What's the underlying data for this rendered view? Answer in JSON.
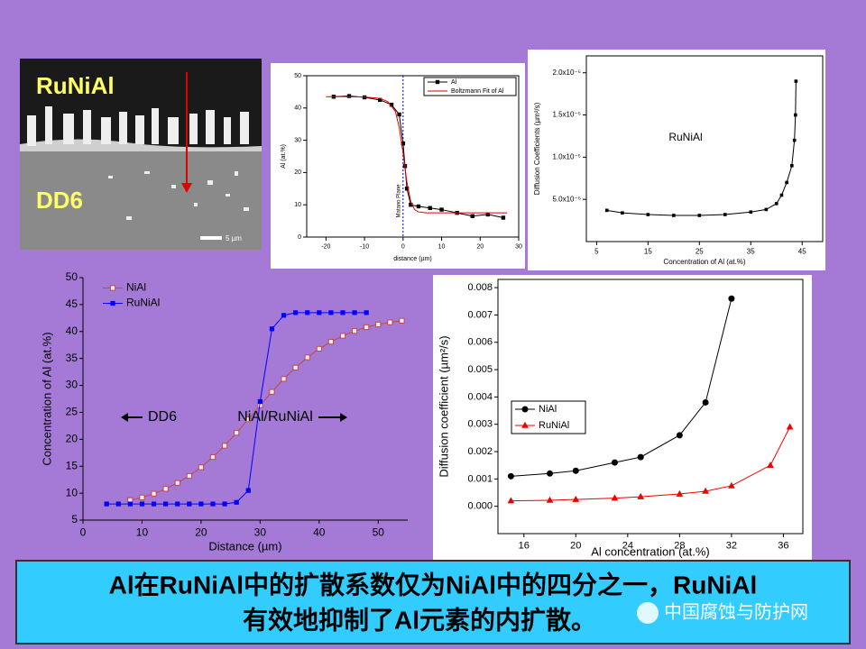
{
  "micrograph": {
    "top_label": "RuNiAl",
    "bottom_label": "DD6",
    "scale_bar": "5 µm"
  },
  "chart_data": [
    {
      "type": "line",
      "ylabel": "Al (at.%)",
      "xlabel": "distance (µm)",
      "xlim": [
        -25,
        30
      ],
      "xticks": [
        -20,
        -10,
        0,
        10,
        20,
        30
      ],
      "ylim": [
        0,
        50
      ],
      "yticks": [
        0,
        10,
        20,
        30,
        40,
        50
      ],
      "reference_line": {
        "x": 0,
        "label": "Matano Plane"
      },
      "legend": "top-right",
      "series": [
        {
          "name": "Al",
          "color": "#000000",
          "marker": "square",
          "x": [
            -18,
            -14,
            -10,
            -6,
            -3,
            -1,
            0,
            0.5,
            1,
            2,
            4,
            7,
            10,
            14,
            18,
            22,
            26
          ],
          "values": [
            43.5,
            43.7,
            43.3,
            42.5,
            41,
            38,
            29,
            22,
            15,
            10,
            9.5,
            9,
            8.5,
            7.5,
            6.5,
            7,
            6
          ]
        },
        {
          "name": "Boltzmann Fit of Al",
          "color": "#e00000",
          "marker": "none",
          "x": [
            -20,
            -15,
            -10,
            -6,
            -4,
            -2,
            -1,
            0,
            1,
            2,
            3,
            4,
            6,
            10,
            15,
            20,
            27
          ],
          "values": [
            43.5,
            43.5,
            43.4,
            43,
            42,
            39,
            34,
            26,
            17,
            11,
            8.5,
            7.8,
            7.5,
            7.5,
            7.5,
            7.5,
            7.5
          ]
        }
      ]
    },
    {
      "type": "line",
      "ylabel": "Diffusion Coefficients (µm²/s)",
      "xlabel": "Concentration of Al (at.%)",
      "annotation": "RuNiAl",
      "xlim": [
        3,
        49
      ],
      "xticks": [
        5,
        15,
        25,
        35,
        45
      ],
      "ylim": [
        0,
        2.2e-05
      ],
      "yticks": [
        {
          "value": 5e-06,
          "label": "5.0x10⁻⁶"
        },
        {
          "value": 1e-05,
          "label": "1.0x10⁻⁵"
        },
        {
          "value": 1.5e-05,
          "label": "1.5x10⁻⁵"
        },
        {
          "value": 2e-05,
          "label": "2.0x10⁻⁵"
        }
      ],
      "series": [
        {
          "color": "#000000",
          "marker": "square",
          "x": [
            7,
            10,
            15,
            20,
            25,
            30,
            35,
            38,
            40,
            41,
            42,
            43,
            43.5,
            43.7,
            43.8
          ],
          "values": [
            3.7e-06,
            3.4e-06,
            3.2e-06,
            3.1e-06,
            3.1e-06,
            3.2e-06,
            3.5e-06,
            3.8e-06,
            4.5e-06,
            5.5e-06,
            7e-06,
            9e-06,
            1.2e-05,
            1.5e-05,
            1.9e-05
          ]
        }
      ]
    },
    {
      "type": "line",
      "ylabel": "Concentration of Al (at.%)",
      "xlabel": "Distance (µm)",
      "annotations": [
        "DD6",
        "NiAl/RuNiAl"
      ],
      "xlim": [
        0,
        55
      ],
      "xticks": [
        0,
        10,
        20,
        30,
        40,
        50
      ],
      "ylim": [
        5,
        50
      ],
      "yticks": [
        5,
        10,
        15,
        20,
        25,
        30,
        35,
        40,
        45,
        50
      ],
      "legend": "top-left",
      "x": [
        4,
        6,
        8,
        10,
        12,
        14,
        16,
        18,
        20,
        22,
        24,
        26,
        28,
        30,
        32,
        34,
        36,
        38,
        40,
        42,
        44,
        46,
        48,
        50,
        52,
        54
      ],
      "series": [
        {
          "name": "NiAl",
          "color": "#c04848",
          "marker": "open-square",
          "values": [
            null,
            null,
            8.7,
            9.2,
            9.9,
            10.8,
            11.9,
            13.2,
            14.8,
            16.7,
            18.8,
            21.2,
            23.7,
            26.3,
            28.8,
            31.2,
            33.3,
            35.2,
            36.8,
            38.1,
            39.2,
            40.1,
            40.8,
            41.3,
            41.7,
            42.0
          ]
        },
        {
          "name": "RuNiAl",
          "color": "#0000ff",
          "marker": "square",
          "values": [
            8,
            8,
            8,
            8,
            8,
            8,
            8,
            8,
            8,
            8,
            8,
            8.3,
            10.5,
            27,
            40.5,
            43,
            43.5,
            43.5,
            43.5,
            43.5,
            43.5,
            43.5,
            43.5,
            null,
            null,
            null
          ]
        }
      ]
    },
    {
      "type": "line",
      "ylabel": "Diffusion coefficient (µm²/s)",
      "xlabel": "Al concentration (at.%)",
      "xlim": [
        14,
        37.5
      ],
      "xticks": [
        16,
        20,
        24,
        28,
        32,
        36
      ],
      "ylim": [
        -0.001,
        0.0083
      ],
      "yticks": [
        {
          "value": 0,
          "label": "0.000"
        },
        0.001,
        0.002,
        0.003,
        0.004,
        0.005,
        0.006,
        0.007,
        0.008
      ],
      "legend": "middle-left",
      "series": [
        {
          "name": "NiAl",
          "color": "#000000",
          "marker": "circle",
          "x": [
            15,
            18,
            20,
            23,
            25,
            28,
            30,
            32
          ],
          "values": [
            0.0011,
            0.0012,
            0.0013,
            0.0016,
            0.0018,
            0.0026,
            0.0038,
            0.0076
          ]
        },
        {
          "name": "RuNiAl",
          "color": "#ee0000",
          "marker": "triangle",
          "x": [
            15,
            18,
            20,
            23,
            25,
            28,
            30,
            32,
            35,
            36.5
          ],
          "values": [
            0.0002,
            0.00022,
            0.00025,
            0.0003,
            0.00035,
            0.00045,
            0.00055,
            0.00075,
            0.0015,
            0.0029
          ]
        }
      ]
    }
  ],
  "caption": {
    "line1": "Al在RuNiAl中的扩散系数仅为NiAl中的四分之一，RuNiAl",
    "line2": "有效地抑制了Al元素的内扩散。"
  },
  "watermark": "中国腐蚀与防护网"
}
